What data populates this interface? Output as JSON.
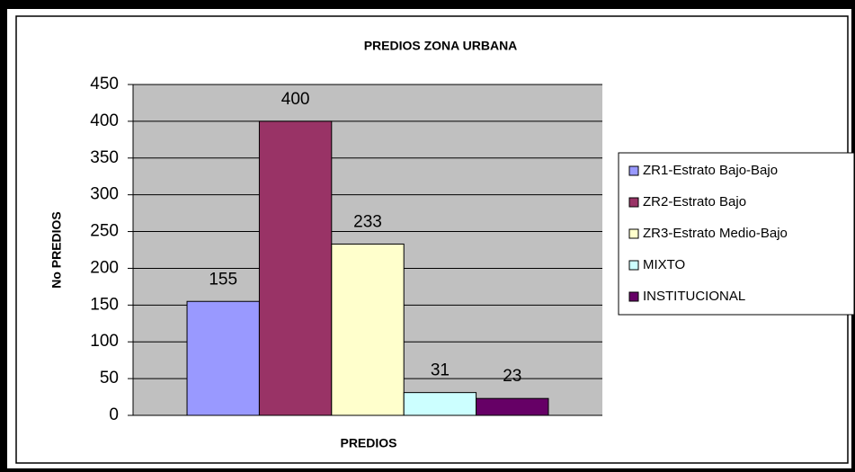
{
  "chart_data": {
    "type": "bar",
    "title": "PREDIOS ZONA URBANA",
    "x_label": "PREDIOS",
    "y_label": "No PREDIOS",
    "categories": [
      null
    ],
    "series": [
      {
        "name": "ZR1-Estrato Bajo-Bajo",
        "color": "#9999ff",
        "values": [
          155
        ]
      },
      {
        "name": "ZR2-Estrato Bajo",
        "color": "#993366",
        "values": [
          400
        ]
      },
      {
        "name": "ZR3-Estrato Medio-Bajo",
        "color": "#ffffcc",
        "values": [
          233
        ]
      },
      {
        "name": "MIXTO",
        "color": "#ccffff",
        "values": [
          31
        ]
      },
      {
        "name": "INSTITUCIONAL",
        "color": "#660066",
        "values": [
          23
        ]
      }
    ],
    "ylim": [
      0,
      450
    ],
    "yticks": [
      0,
      50,
      100,
      150,
      200,
      250,
      300,
      350,
      400,
      450
    ],
    "grid": true,
    "legend": "right",
    "data_labels": true
  }
}
